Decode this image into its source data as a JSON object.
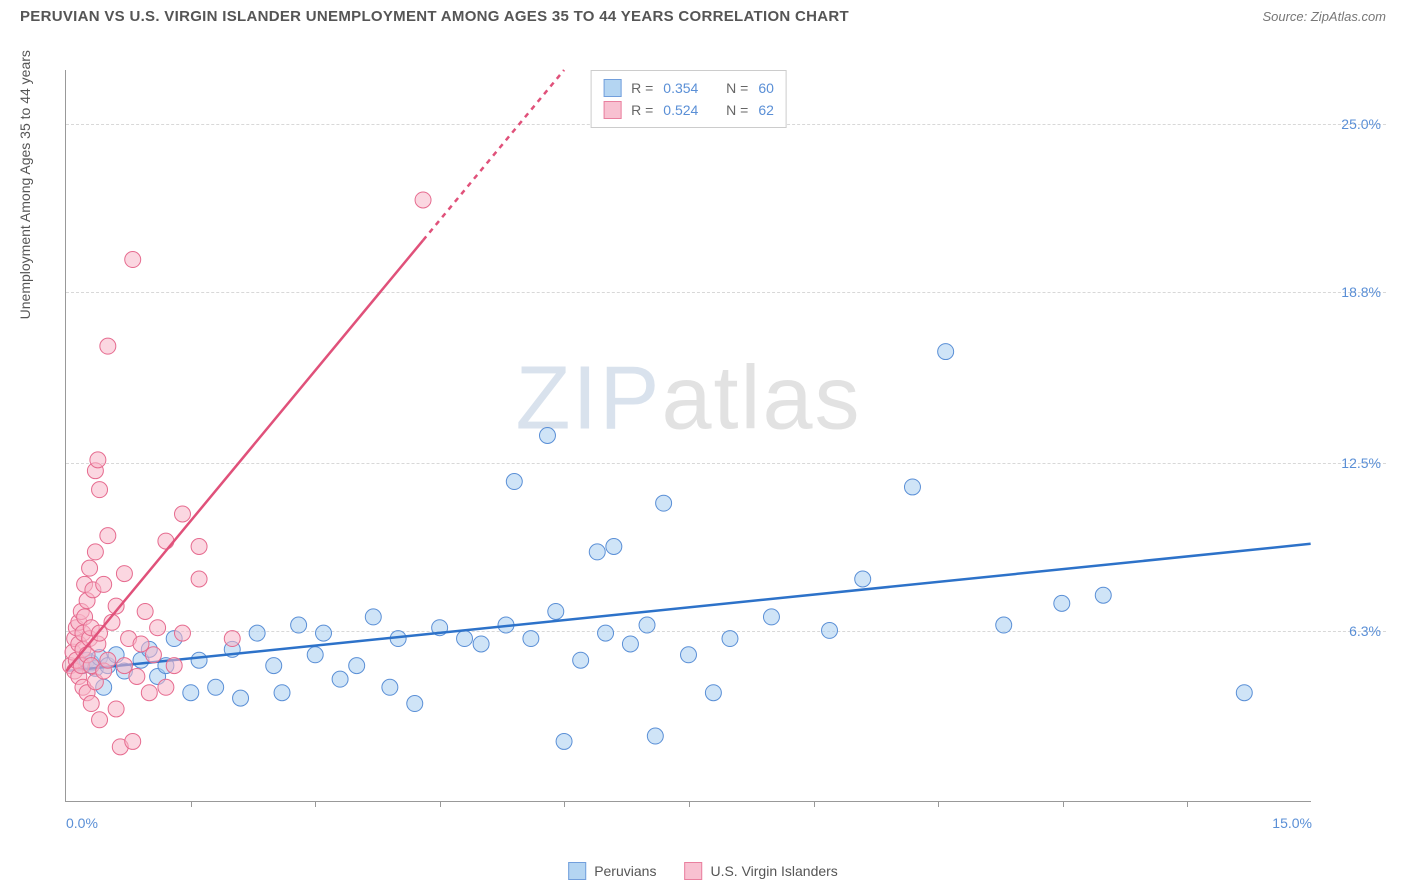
{
  "title": "PERUVIAN VS U.S. VIRGIN ISLANDER UNEMPLOYMENT AMONG AGES 35 TO 44 YEARS CORRELATION CHART",
  "source_label": "Source: ZipAtlas.com",
  "y_axis_label": "Unemployment Among Ages 35 to 44 years",
  "watermark_a": "ZIP",
  "watermark_b": "atlas",
  "chart": {
    "type": "scatter",
    "x_min": 0.0,
    "x_max": 15.0,
    "y_min": 0.0,
    "y_max": 27.0,
    "x_tick_labels": [
      {
        "v": 0.0,
        "label": "0.0%"
      },
      {
        "v": 15.0,
        "label": "15.0%"
      }
    ],
    "x_minor_ticks": [
      1.5,
      3.0,
      4.5,
      6.0,
      7.5,
      9.0,
      10.5,
      12.0,
      13.5
    ],
    "y_ticks": [
      {
        "v": 6.3,
        "label": "6.3%"
      },
      {
        "v": 12.5,
        "label": "12.5%"
      },
      {
        "v": 18.8,
        "label": "18.8%"
      },
      {
        "v": 25.0,
        "label": "25.0%"
      }
    ],
    "background_color": "#ffffff",
    "grid_color": "#d8d8d8",
    "series": [
      {
        "name": "Peruvians",
        "color_fill": "#a8cef0",
        "color_stroke": "#5a8fd6",
        "fill_opacity": 0.55,
        "marker_radius": 8,
        "stats": {
          "R": "0.354",
          "N": "60"
        },
        "trend": {
          "x1": 0.0,
          "y1": 4.8,
          "x2": 15.0,
          "y2": 9.5,
          "stroke": "#2d72c9",
          "width": 2.5,
          "dash_after_x": null
        },
        "points": [
          [
            0.2,
            5.0
          ],
          [
            0.25,
            5.2
          ],
          [
            0.3,
            5.1
          ],
          [
            0.35,
            4.9
          ],
          [
            0.4,
            5.3
          ],
          [
            0.45,
            4.2
          ],
          [
            0.5,
            5.0
          ],
          [
            0.6,
            5.4
          ],
          [
            0.7,
            4.8
          ],
          [
            0.9,
            5.2
          ],
          [
            1.0,
            5.6
          ],
          [
            1.1,
            4.6
          ],
          [
            1.2,
            5.0
          ],
          [
            1.3,
            6.0
          ],
          [
            1.5,
            4.0
          ],
          [
            1.6,
            5.2
          ],
          [
            1.8,
            4.2
          ],
          [
            2.0,
            5.6
          ],
          [
            2.1,
            3.8
          ],
          [
            2.3,
            6.2
          ],
          [
            2.5,
            5.0
          ],
          [
            2.6,
            4.0
          ],
          [
            2.8,
            6.5
          ],
          [
            3.0,
            5.4
          ],
          [
            3.1,
            6.2
          ],
          [
            3.3,
            4.5
          ],
          [
            3.5,
            5.0
          ],
          [
            3.7,
            6.8
          ],
          [
            3.9,
            4.2
          ],
          [
            4.0,
            6.0
          ],
          [
            4.2,
            3.6
          ],
          [
            4.5,
            6.4
          ],
          [
            4.8,
            6.0
          ],
          [
            5.0,
            5.8
          ],
          [
            5.3,
            6.5
          ],
          [
            5.4,
            11.8
          ],
          [
            5.6,
            6.0
          ],
          [
            5.8,
            13.5
          ],
          [
            5.9,
            7.0
          ],
          [
            6.0,
            2.2
          ],
          [
            6.2,
            5.2
          ],
          [
            6.4,
            9.2
          ],
          [
            6.5,
            6.2
          ],
          [
            6.6,
            9.4
          ],
          [
            6.8,
            5.8
          ],
          [
            7.0,
            6.5
          ],
          [
            7.1,
            2.4
          ],
          [
            7.2,
            11.0
          ],
          [
            7.5,
            5.4
          ],
          [
            7.8,
            4.0
          ],
          [
            8.0,
            6.0
          ],
          [
            8.5,
            6.8
          ],
          [
            9.2,
            6.3
          ],
          [
            9.6,
            8.2
          ],
          [
            10.2,
            11.6
          ],
          [
            10.6,
            16.6
          ],
          [
            11.3,
            6.5
          ],
          [
            12.0,
            7.3
          ],
          [
            12.5,
            7.6
          ],
          [
            14.2,
            4.0
          ]
        ]
      },
      {
        "name": "U.S. Virgin Islanders",
        "color_fill": "#f7b7c9",
        "color_stroke": "#e66b8f",
        "fill_opacity": 0.55,
        "marker_radius": 8,
        "stats": {
          "R": "0.524",
          "N": "62"
        },
        "trend": {
          "x1": 0.0,
          "y1": 4.8,
          "x2": 6.0,
          "y2": 27.0,
          "stroke": "#e0517a",
          "width": 2.5,
          "dash_after_x": 4.3
        },
        "points": [
          [
            0.05,
            5.0
          ],
          [
            0.08,
            5.5
          ],
          [
            0.1,
            4.8
          ],
          [
            0.1,
            6.0
          ],
          [
            0.12,
            5.2
          ],
          [
            0.12,
            6.4
          ],
          [
            0.15,
            4.6
          ],
          [
            0.15,
            5.8
          ],
          [
            0.15,
            6.6
          ],
          [
            0.18,
            5.0
          ],
          [
            0.18,
            7.0
          ],
          [
            0.2,
            4.2
          ],
          [
            0.2,
            5.6
          ],
          [
            0.2,
            6.2
          ],
          [
            0.22,
            6.8
          ],
          [
            0.22,
            8.0
          ],
          [
            0.25,
            4.0
          ],
          [
            0.25,
            5.4
          ],
          [
            0.25,
            7.4
          ],
          [
            0.28,
            6.0
          ],
          [
            0.28,
            8.6
          ],
          [
            0.3,
            3.6
          ],
          [
            0.3,
            5.0
          ],
          [
            0.3,
            6.4
          ],
          [
            0.32,
            7.8
          ],
          [
            0.35,
            4.4
          ],
          [
            0.35,
            9.2
          ],
          [
            0.35,
            12.2
          ],
          [
            0.38,
            5.8
          ],
          [
            0.38,
            12.6
          ],
          [
            0.4,
            3.0
          ],
          [
            0.4,
            6.2
          ],
          [
            0.4,
            11.5
          ],
          [
            0.45,
            4.8
          ],
          [
            0.45,
            8.0
          ],
          [
            0.5,
            5.2
          ],
          [
            0.5,
            9.8
          ],
          [
            0.5,
            16.8
          ],
          [
            0.55,
            6.6
          ],
          [
            0.6,
            3.4
          ],
          [
            0.6,
            7.2
          ],
          [
            0.65,
            2.0
          ],
          [
            0.7,
            5.0
          ],
          [
            0.7,
            8.4
          ],
          [
            0.75,
            6.0
          ],
          [
            0.8,
            2.2
          ],
          [
            0.8,
            20.0
          ],
          [
            0.85,
            4.6
          ],
          [
            0.9,
            5.8
          ],
          [
            0.95,
            7.0
          ],
          [
            1.0,
            4.0
          ],
          [
            1.05,
            5.4
          ],
          [
            1.1,
            6.4
          ],
          [
            1.2,
            4.2
          ],
          [
            1.2,
            9.6
          ],
          [
            1.3,
            5.0
          ],
          [
            1.4,
            6.2
          ],
          [
            1.4,
            10.6
          ],
          [
            1.6,
            8.2
          ],
          [
            1.6,
            9.4
          ],
          [
            2.0,
            6.0
          ],
          [
            4.3,
            22.2
          ]
        ]
      }
    ]
  },
  "stats_box": {
    "r_label": "R =",
    "n_label": "N ="
  }
}
